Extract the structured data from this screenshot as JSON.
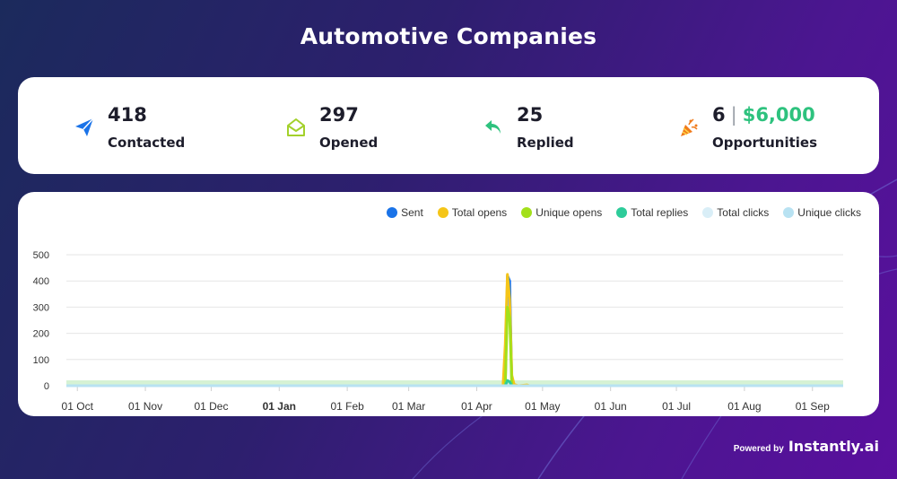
{
  "page": {
    "title": "Automotive Companies"
  },
  "stats": [
    {
      "icon": "send-icon",
      "value": "418",
      "label": "Contacted",
      "color": "#1a73e8"
    },
    {
      "icon": "envelope-open-icon",
      "value": "297",
      "label": "Opened",
      "color": "#a3d12b"
    },
    {
      "icon": "reply-icon",
      "value": "25",
      "label": "Replied",
      "color": "#2ec27e"
    },
    {
      "icon": "party-popper-icon",
      "value": "6",
      "separator": "|",
      "money": "$6,000",
      "label": "Opportunities",
      "color": "#f07a1a"
    }
  ],
  "legend": [
    {
      "label": "Sent",
      "color": "#1a73e8"
    },
    {
      "label": "Total opens",
      "color": "#f5c518"
    },
    {
      "label": "Unique opens",
      "color": "#a3e01b"
    },
    {
      "label": "Total replies",
      "color": "#2ecc9a"
    },
    {
      "label": "Total clicks",
      "color": "#d9eef7"
    },
    {
      "label": "Unique clicks",
      "color": "#b8e2f2"
    }
  ],
  "chart_data": {
    "type": "line",
    "title": "",
    "xlabel": "",
    "ylabel": "",
    "ylim": [
      0,
      500
    ],
    "yticks": [
      "0",
      "100",
      "200",
      "300",
      "400",
      "500"
    ],
    "xticks": [
      "01 Oct",
      "01 Nov",
      "01 Dec",
      "01 Jan",
      "01 Feb",
      "01 Mar",
      "01 Apr",
      "01 May",
      "01 Jun",
      "01 Jul",
      "01 Aug",
      "01 Sep"
    ],
    "xticks_bold": "01 Jan",
    "x_range_days": [
      -5,
      349
    ],
    "xtick_days": [
      0,
      31,
      61,
      92,
      123,
      151,
      182,
      212,
      243,
      273,
      304,
      335
    ],
    "series": [
      {
        "name": "Sent",
        "color": "#1a73e8",
        "points": [
          [
            195,
            0
          ],
          [
            196,
            420
          ],
          [
            197,
            400
          ],
          [
            198,
            0
          ]
        ]
      },
      {
        "name": "Total opens",
        "color": "#f5c518",
        "points": [
          [
            194,
            0
          ],
          [
            195,
            160
          ],
          [
            196,
            425
          ],
          [
            197,
            330
          ],
          [
            198,
            40
          ],
          [
            199,
            5
          ],
          [
            201,
            0
          ],
          [
            205,
            3
          ],
          [
            206,
            0
          ]
        ]
      },
      {
        "name": "Unique opens",
        "color": "#a3e01b",
        "points": [
          [
            195,
            0
          ],
          [
            196,
            300
          ],
          [
            197,
            260
          ],
          [
            198,
            0
          ]
        ]
      },
      {
        "name": "Total replies",
        "color": "#2ecc9a",
        "points": [
          [
            195,
            0
          ],
          [
            196,
            20
          ],
          [
            197,
            15
          ],
          [
            198,
            0
          ]
        ]
      },
      {
        "name": "Total clicks",
        "color": "#d9eef7",
        "points": [
          [
            -5,
            0
          ],
          [
            349,
            0
          ]
        ]
      },
      {
        "name": "Unique clicks",
        "color": "#b8e2f2",
        "points": [
          [
            -5,
            0
          ],
          [
            349,
            0
          ]
        ]
      }
    ]
  },
  "footer": {
    "powered_by": "Powered by",
    "brand": "Instantly.ai"
  }
}
